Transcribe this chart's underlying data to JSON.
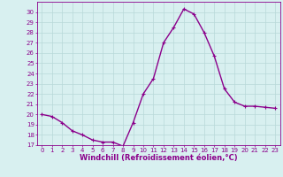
{
  "x": [
    0,
    1,
    2,
    3,
    4,
    5,
    6,
    7,
    8,
    9,
    10,
    11,
    12,
    13,
    14,
    15,
    16,
    17,
    18,
    19,
    20,
    21,
    22,
    23
  ],
  "y": [
    20.0,
    19.8,
    19.2,
    18.4,
    18.0,
    17.5,
    17.3,
    17.3,
    16.9,
    19.2,
    22.0,
    23.5,
    27.0,
    28.5,
    30.3,
    29.8,
    28.0,
    25.7,
    22.5,
    21.2,
    20.8,
    20.8,
    20.7,
    20.6
  ],
  "line_color": "#8B008B",
  "marker": "+",
  "marker_size": 3,
  "marker_color": "#8B008B",
  "background_color": "#d8f0f0",
  "grid_color": "#b8d8d8",
  "xlabel": "Windchill (Refroidissement éolien,°C)",
  "ylim": [
    17,
    31
  ],
  "xlim": [
    -0.5,
    23.5
  ],
  "yticks": [
    17,
    18,
    19,
    20,
    21,
    22,
    23,
    24,
    25,
    26,
    27,
    28,
    29,
    30
  ],
  "xticks": [
    0,
    1,
    2,
    3,
    4,
    5,
    6,
    7,
    8,
    9,
    10,
    11,
    12,
    13,
    14,
    15,
    16,
    17,
    18,
    19,
    20,
    21,
    22,
    23
  ],
  "tick_color": "#8B008B",
  "tick_fontsize": 5.0,
  "xlabel_fontsize": 6.0,
  "line_width": 1.0
}
